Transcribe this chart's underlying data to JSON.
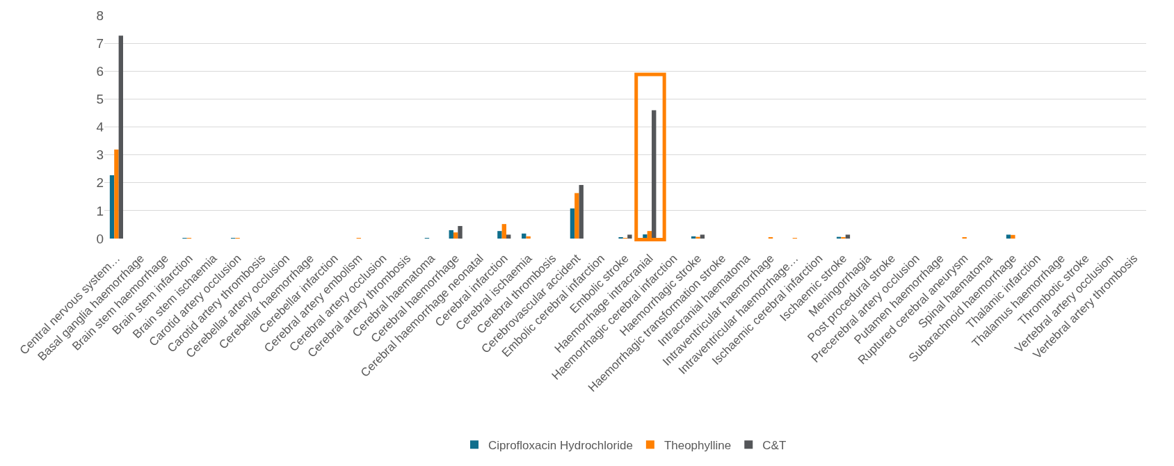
{
  "chart_data": {
    "type": "bar",
    "categories": [
      "Central nervous system…",
      "Basal ganglia haemorrhage",
      "Brain stem haemorrhage",
      "Brain stem infarction",
      "Brain stem ischaemia",
      "Carotid artery occlusion",
      "Carotid artery thrombosis",
      "Cerebellar artery occlusion",
      "Cerebellar haemorrhage",
      "Cerebellar infarction",
      "Cerebral artery embolism",
      "Cerebral artery occlusion",
      "Cerebral artery thrombosis",
      "Cerebral haematoma",
      "Cerebral haemorrhage",
      "Cerebral haemorrhage neonatal",
      "Cerebral infarction",
      "Cerebral ischaemia",
      "Cerebral thrombosis",
      "Cerebrovascular accident",
      "Embolic cerebral infarction",
      "Embolic stroke",
      "Haemorrhage intracranial",
      "Haemorrhagic cerebral infarction",
      "Haemorrhagic stroke",
      "Haemorrhagic transformation stroke",
      "Intracranial haematoma",
      "Intraventricular haemorrhage",
      "Intraventricular haemorrhage…",
      "Ischaemic cerebral infarction",
      "Ischaemic stroke",
      "Meningorrhagia",
      "Post procedural stroke",
      "Precerebral artery occlusion",
      "Putamen haemorrhage",
      "Ruptured cerebral aneurysm",
      "Spinal haematoma",
      "Subarachnoid haemorrhage",
      "Thalamic infarction",
      "Thalamus haemorrhage",
      "Thrombotic stroke",
      "Vertebral artery occlusion",
      "Vertebral artery thrombosis"
    ],
    "series": [
      {
        "name": "Ciprofloxacin Hydrochloride",
        "color": "#0e6e8c",
        "values": [
          2.27,
          0,
          0,
          0.01,
          0,
          0.01,
          0,
          0,
          0,
          0,
          0,
          0,
          0,
          0.02,
          0.3,
          0,
          0.27,
          0.18,
          0,
          1.08,
          0,
          0.03,
          0.15,
          0,
          0.08,
          0,
          0,
          0,
          0,
          0,
          0.06,
          0,
          0,
          0,
          0,
          0,
          0,
          0.14,
          0,
          0,
          0,
          0,
          0
        ]
      },
      {
        "name": "Theophylline",
        "color": "#ff8000",
        "values": [
          3.19,
          0,
          0,
          0.01,
          0,
          0.01,
          0,
          0,
          0,
          0,
          0.02,
          0,
          0,
          0,
          0.22,
          0,
          0.52,
          0.08,
          0,
          1.63,
          0,
          0.02,
          0.27,
          0,
          0.06,
          0,
          0,
          0.03,
          0.01,
          0,
          0.05,
          0,
          0,
          0,
          0,
          0.03,
          0,
          0.13,
          0,
          0,
          0,
          0,
          0
        ]
      },
      {
        "name": "C&T",
        "color": "#545659",
        "values": [
          7.27,
          0,
          0,
          0,
          0,
          0,
          0,
          0,
          0,
          0,
          0,
          0,
          0,
          0,
          0.45,
          0,
          0.14,
          0,
          0,
          1.92,
          0,
          0.14,
          4.6,
          0,
          0.14,
          0,
          0,
          0,
          0,
          0,
          0.14,
          0,
          0,
          0,
          0,
          0,
          0,
          0,
          0,
          0,
          0,
          0,
          0
        ]
      }
    ],
    "ylim": [
      0,
      8
    ],
    "yticks": [
      0,
      1,
      2,
      3,
      4,
      5,
      6,
      7,
      8
    ],
    "grid": "y",
    "legend": "bottom"
  }
}
